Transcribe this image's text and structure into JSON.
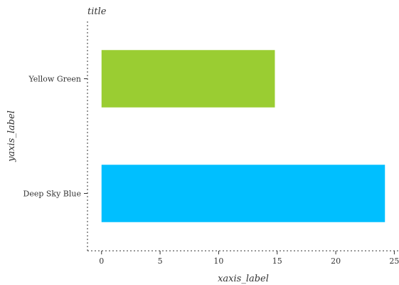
{
  "chart_data": {
    "type": "bar",
    "orientation": "horizontal",
    "title": "title",
    "xlabel": "xaxis_label",
    "ylabel": "yaxis_label",
    "categories": [
      "Deep Sky Blue",
      "Yellow Green"
    ],
    "values": [
      24.2,
      14.8
    ],
    "colors": [
      "#00bfff",
      "#9acd32"
    ],
    "xlim": [
      -1.2,
      25.4
    ],
    "xticks": [
      0,
      5,
      10,
      15,
      20,
      25
    ],
    "xtick_labels": [
      "0",
      "5",
      "10",
      "15",
      "20",
      "25"
    ],
    "grid": false,
    "legend": "none"
  }
}
